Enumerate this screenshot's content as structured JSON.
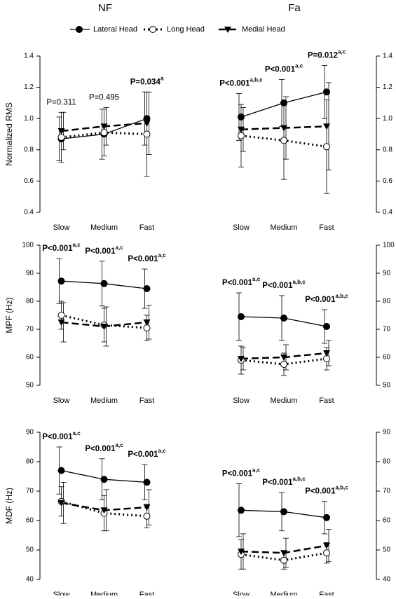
{
  "column_titles": [
    "NF",
    "Fa"
  ],
  "chart_data": [
    {
      "type": "line",
      "ylabel": "Normalized RMS",
      "categories": [
        "Slow",
        "Medium",
        "Fast"
      ],
      "ylim": [
        0.4,
        1.4
      ],
      "yticks": [
        0.4,
        0.6,
        0.8,
        {
          "value": 1,
          "label": "1.0"
        },
        1.2,
        1.4
      ],
      "series": [
        {
          "name": "Lateral Head",
          "color": "#000000",
          "style": "solid",
          "marker": "filled-circle",
          "values": [
            0.87,
            0.9,
            1.0
          ],
          "errors": [
            0.14,
            0.16,
            0.17
          ]
        },
        {
          "name": "Long Head",
          "color": "#000000",
          "style": "dotted",
          "marker": "open-circle",
          "values": [
            0.88,
            0.91,
            0.9
          ],
          "errors": [
            0.16,
            0.15,
            0.27
          ]
        },
        {
          "name": "Medial Head",
          "color": "#000000",
          "style": "dashed",
          "marker": "triangle-down",
          "values": [
            0.92,
            0.95,
            0.97
          ],
          "errors": [
            0.12,
            0.12,
            0.2
          ]
        }
      ],
      "annotations": [
        {
          "label": "P=0.311",
          "bold": false
        },
        {
          "label": "P=0.495",
          "bold": false
        },
        {
          "label": "P=0.034",
          "superscript": "a",
          "bold": true
        }
      ]
    },
    {
      "type": "line",
      "categories": [
        "Slow",
        "Medium",
        "Fast"
      ],
      "ylim": [
        0.4,
        1.4
      ],
      "yticks": [
        0.4,
        0.6,
        0.8,
        {
          "value": 1,
          "label": "1.0"
        },
        1.2,
        1.4
      ],
      "series": [
        {
          "name": "Lateral Head",
          "color": "#000000",
          "style": "solid",
          "marker": "filled-circle",
          "values": [
            1.01,
            1.1,
            1.17
          ],
          "errors": [
            0.15,
            0.15,
            0.17
          ]
        },
        {
          "name": "Long Head",
          "color": "#000000",
          "style": "dotted",
          "marker": "open-circle",
          "values": [
            0.89,
            0.86,
            0.82
          ],
          "errors": [
            0.2,
            0.25,
            0.3
          ]
        },
        {
          "name": "Medial Head",
          "color": "#000000",
          "style": "dashed",
          "marker": "triangle-down",
          "values": [
            0.93,
            0.94,
            0.95
          ],
          "errors": [
            0.14,
            0.2,
            0.28
          ]
        }
      ],
      "annotations": [
        {
          "label": "P<0.001",
          "superscript": "a,b,c",
          "bold": true
        },
        {
          "label": "P<0.001",
          "superscript": "a,c",
          "bold": true
        },
        {
          "label": "P=0.012",
          "superscript": "a,c",
          "bold": true
        }
      ]
    },
    {
      "type": "line",
      "ylabel": "MPF (Hz)",
      "categories": [
        "Slow",
        "Medium",
        "Fast"
      ],
      "ylim": [
        50,
        100
      ],
      "yticks": [
        50,
        60,
        70,
        80,
        90,
        100
      ],
      "series": [
        {
          "name": "Lateral Head",
          "color": "#000000",
          "style": "solid",
          "marker": "filled-circle",
          "values": [
            87.2,
            86.3,
            84.5
          ],
          "errors": [
            8,
            8,
            7
          ]
        },
        {
          "name": "Long Head",
          "color": "#000000",
          "style": "dotted",
          "marker": "open-circle",
          "values": [
            75,
            71.5,
            70.5
          ],
          "errors": [
            5,
            6,
            4.5
          ]
        },
        {
          "name": "Medial Head",
          "color": "#000000",
          "style": "dashed",
          "marker": "triangle-down",
          "values": [
            72.5,
            71,
            72.5
          ],
          "errors": [
            7,
            7,
            6
          ]
        }
      ],
      "annotations": [
        {
          "label": "P<0.001",
          "superscript": "a,c",
          "bold": true
        },
        {
          "label": "P<0.001",
          "superscript": "a,c",
          "bold": true
        },
        {
          "label": "P<0.001",
          "superscript": "a,c",
          "bold": true
        }
      ]
    },
    {
      "type": "line",
      "categories": [
        "Slow",
        "Medium",
        "Fast"
      ],
      "ylim": [
        50,
        100
      ],
      "yticks": [
        50,
        60,
        70,
        80,
        90,
        100
      ],
      "series": [
        {
          "name": "Lateral Head",
          "color": "#000000",
          "style": "solid",
          "marker": "filled-circle",
          "values": [
            74.5,
            74,
            71
          ],
          "errors": [
            8.5,
            8,
            6
          ]
        },
        {
          "name": "Long Head",
          "color": "#000000",
          "style": "dotted",
          "marker": "open-circle",
          "values": [
            59,
            57.5,
            59.5
          ],
          "errors": [
            5,
            4,
            4
          ]
        },
        {
          "name": "Medial Head",
          "color": "#000000",
          "style": "dashed",
          "marker": "triangle-down",
          "values": [
            59.5,
            60,
            61.5
          ],
          "errors": [
            4,
            4.5,
            4.5
          ]
        }
      ],
      "annotations": [
        {
          "label": "P<0.001",
          "superscript": "a,c",
          "bold": true
        },
        {
          "label": "P<0.001",
          "superscript": "a,b,c",
          "bold": true
        },
        {
          "label": "P<0.001",
          "superscript": "a,b,c",
          "bold": true
        }
      ]
    },
    {
      "type": "line",
      "ylabel": "MDF (Hz)",
      "categories": [
        "Slow",
        "Medium",
        "Fast"
      ],
      "ylim": [
        40,
        90
      ],
      "yticks": [
        40,
        50,
        60,
        70,
        80,
        90
      ],
      "series": [
        {
          "name": "Lateral Head",
          "color": "#000000",
          "style": "solid",
          "marker": "filled-circle",
          "values": [
            77,
            74,
            73
          ],
          "errors": [
            8,
            7,
            6
          ]
        },
        {
          "name": "Long Head",
          "color": "#000000",
          "style": "dotted",
          "marker": "open-circle",
          "values": [
            66.5,
            62.5,
            61.5
          ],
          "errors": [
            5,
            6,
            4
          ]
        },
        {
          "name": "Medial Head",
          "color": "#000000",
          "style": "dashed",
          "marker": "triangle-down",
          "values": [
            66,
            63.5,
            64.5
          ],
          "errors": [
            7,
            7,
            6
          ]
        }
      ],
      "annotations": [
        {
          "label": "P<0.001",
          "superscript": "a,c",
          "bold": true
        },
        {
          "label": "P<0.001",
          "superscript": "a,c",
          "bold": true
        },
        {
          "label": "P<0.001",
          "superscript": "a,c",
          "bold": true
        }
      ]
    },
    {
      "type": "line",
      "categories": [
        "Slow",
        "Medium",
        "Fast"
      ],
      "ylim": [
        40,
        90
      ],
      "yticks": [
        40,
        50,
        60,
        70,
        80,
        90
      ],
      "series": [
        {
          "name": "Lateral Head",
          "color": "#000000",
          "style": "solid",
          "marker": "filled-circle",
          "values": [
            63.5,
            63,
            61
          ],
          "errors": [
            9,
            6.5,
            5.5
          ]
        },
        {
          "name": "Long Head",
          "color": "#000000",
          "style": "dotted",
          "marker": "open-circle",
          "values": [
            48.5,
            46.5,
            49
          ],
          "errors": [
            5,
            3,
            3.5
          ]
        },
        {
          "name": "Medial Head",
          "color": "#000000",
          "style": "dashed",
          "marker": "triangle-down",
          "values": [
            49.5,
            49,
            51.5
          ],
          "errors": [
            6,
            5,
            5.5
          ]
        }
      ],
      "annotations": [
        {
          "label": "P<0.001",
          "superscript": "a,c",
          "bold": true
        },
        {
          "label": "P<0.001",
          "superscript": "a,b,c",
          "bold": true
        },
        {
          "label": "P<0.001",
          "superscript": "a,b,c",
          "bold": true
        }
      ]
    }
  ]
}
